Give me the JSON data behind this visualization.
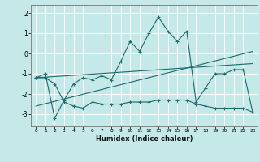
{
  "xlabel": "Humidex (Indice chaleur)",
  "bg_color": "#c5e8e8",
  "grid_color": "#ffffff",
  "line_color": "#1a6b6b",
  "xticks": [
    0,
    1,
    2,
    3,
    4,
    5,
    6,
    7,
    8,
    9,
    10,
    11,
    12,
    13,
    14,
    15,
    16,
    17,
    18,
    19,
    20,
    21,
    22,
    23
  ],
  "yticks": [
    -3,
    -2,
    -1,
    0,
    1,
    2
  ],
  "ylim": [
    -3.6,
    2.4
  ],
  "xlim": [
    -0.5,
    23.5
  ],
  "series1_x": [
    0,
    1,
    2,
    3,
    4,
    5,
    6,
    7,
    8,
    9,
    10,
    11,
    12,
    13,
    14,
    15,
    16,
    17,
    18,
    19,
    20,
    21,
    22,
    23
  ],
  "series1_y": [
    -1.2,
    -1.0,
    -3.2,
    -2.3,
    -1.5,
    -1.2,
    -1.3,
    -1.1,
    -1.3,
    -0.4,
    0.6,
    0.1,
    1.0,
    1.8,
    1.1,
    0.6,
    1.1,
    -2.4,
    -1.7,
    -1.0,
    -1.0,
    -0.8,
    -0.8,
    -2.9
  ],
  "series2_x": [
    0,
    1,
    2,
    3,
    4,
    5,
    6,
    7,
    8,
    9,
    10,
    11,
    12,
    13,
    14,
    15,
    16,
    17,
    18,
    19,
    20,
    21,
    22,
    23
  ],
  "series2_y": [
    -1.2,
    -1.2,
    -1.5,
    -2.4,
    -2.6,
    -2.7,
    -2.4,
    -2.5,
    -2.5,
    -2.5,
    -2.4,
    -2.4,
    -2.4,
    -2.3,
    -2.3,
    -2.3,
    -2.3,
    -2.5,
    -2.6,
    -2.7,
    -2.7,
    -2.7,
    -2.7,
    -2.9
  ],
  "series3_x": [
    0,
    23
  ],
  "series3_y": [
    -1.2,
    -0.5
  ],
  "series4_x": [
    0,
    23
  ],
  "series4_y": [
    -2.6,
    0.1
  ]
}
